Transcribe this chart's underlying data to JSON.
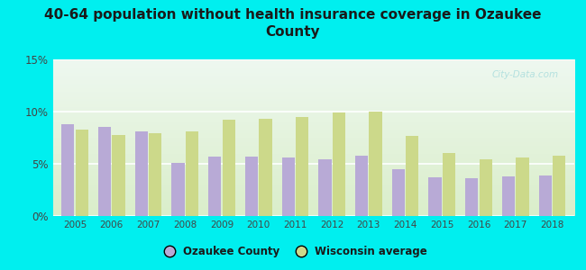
{
  "title": "40-64 population without health insurance coverage in Ozaukee\nCounty",
  "years": [
    2005,
    2006,
    2007,
    2008,
    2009,
    2010,
    2011,
    2012,
    2013,
    2014,
    2015,
    2016,
    2017,
    2018
  ],
  "ozaukee": [
    8.8,
    8.5,
    8.1,
    5.1,
    5.7,
    5.7,
    5.6,
    5.4,
    5.8,
    4.5,
    3.7,
    3.6,
    3.8,
    3.9
  ],
  "wisconsin": [
    8.3,
    7.8,
    7.9,
    8.1,
    9.2,
    9.3,
    9.5,
    9.9,
    10.0,
    7.7,
    6.0,
    5.4,
    5.6,
    5.8
  ],
  "ozaukee_color": "#b8aad6",
  "wisconsin_color": "#ccd98a",
  "background_outer": "#00efef",
  "ylim": [
    0,
    15
  ],
  "yticks": [
    0,
    5,
    10,
    15
  ],
  "ytick_labels": [
    "0%",
    "5%",
    "10%",
    "15%"
  ],
  "title_fontsize": 11,
  "legend_labels": [
    "Ozaukee County",
    "Wisconsin average"
  ],
  "watermark": "City-Data.com"
}
